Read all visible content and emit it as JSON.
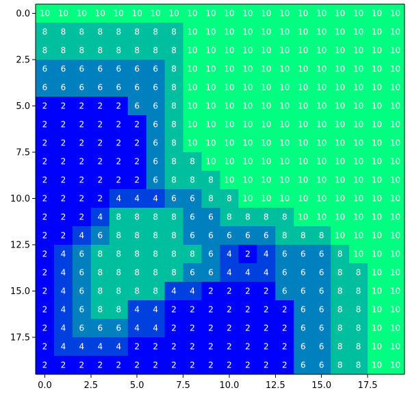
{
  "chart_data": {
    "type": "heatmap",
    "title": "",
    "xlabel": "",
    "ylabel": "",
    "grid": false,
    "legend": "none",
    "x_range": [
      -0.5,
      19.5
    ],
    "y_range": [
      19.5,
      -0.5
    ],
    "x_ticks": [
      "0.0",
      "2.5",
      "5.0",
      "7.5",
      "10.0",
      "12.5",
      "15.0",
      "17.5"
    ],
    "x_tick_values": [
      0,
      2.5,
      5,
      7.5,
      10,
      12.5,
      15,
      17.5
    ],
    "y_ticks": [
      "0.0",
      "2.5",
      "5.0",
      "7.5",
      "10.0",
      "12.5",
      "15.0",
      "17.5"
    ],
    "y_tick_values": [
      0,
      2.5,
      5,
      7.5,
      10,
      12.5,
      15,
      17.5
    ],
    "colormap": "winter",
    "color_min": 2,
    "color_max": 10,
    "colors": {
      "2": "#0000ff",
      "4": "#0040df",
      "6": "#0080bf",
      "8": "#00bf9f",
      "10": "#00ff80"
    },
    "rows": [
      [
        10,
        10,
        10,
        10,
        10,
        10,
        10,
        10,
        10,
        10,
        10,
        10,
        10,
        10,
        10,
        10,
        10,
        10,
        10,
        10
      ],
      [
        8,
        8,
        8,
        8,
        8,
        8,
        8,
        8,
        10,
        10,
        10,
        10,
        10,
        10,
        10,
        10,
        10,
        10,
        10,
        10
      ],
      [
        8,
        8,
        8,
        8,
        8,
        8,
        8,
        8,
        10,
        10,
        10,
        10,
        10,
        10,
        10,
        10,
        10,
        10,
        10,
        10
      ],
      [
        6,
        6,
        6,
        6,
        6,
        6,
        6,
        8,
        10,
        10,
        10,
        10,
        10,
        10,
        10,
        10,
        10,
        10,
        10,
        10
      ],
      [
        6,
        6,
        6,
        6,
        6,
        6,
        6,
        8,
        10,
        10,
        10,
        10,
        10,
        10,
        10,
        10,
        10,
        10,
        10,
        10
      ],
      [
        2,
        2,
        2,
        2,
        2,
        6,
        6,
        8,
        10,
        10,
        10,
        10,
        10,
        10,
        10,
        10,
        10,
        10,
        10,
        10
      ],
      [
        2,
        2,
        2,
        2,
        2,
        2,
        6,
        8,
        10,
        10,
        10,
        10,
        10,
        10,
        10,
        10,
        10,
        10,
        10,
        10
      ],
      [
        2,
        2,
        2,
        2,
        2,
        2,
        6,
        8,
        10,
        10,
        10,
        10,
        10,
        10,
        10,
        10,
        10,
        10,
        10,
        10
      ],
      [
        2,
        2,
        2,
        2,
        2,
        2,
        6,
        8,
        8,
        10,
        10,
        10,
        10,
        10,
        10,
        10,
        10,
        10,
        10,
        10
      ],
      [
        2,
        2,
        2,
        2,
        2,
        2,
        6,
        8,
        8,
        8,
        10,
        10,
        10,
        10,
        10,
        10,
        10,
        10,
        10,
        10
      ],
      [
        2,
        2,
        2,
        2,
        4,
        4,
        4,
        6,
        6,
        8,
        8,
        10,
        10,
        10,
        10,
        10,
        10,
        10,
        10,
        10
      ],
      [
        2,
        2,
        2,
        4,
        8,
        8,
        8,
        8,
        6,
        6,
        8,
        8,
        8,
        8,
        10,
        10,
        10,
        10,
        10,
        10
      ],
      [
        2,
        2,
        4,
        6,
        8,
        8,
        8,
        8,
        6,
        6,
        6,
        6,
        6,
        8,
        8,
        8,
        10,
        10,
        10,
        10
      ],
      [
        2,
        4,
        6,
        8,
        8,
        8,
        8,
        8,
        8,
        6,
        4,
        2,
        4,
        6,
        6,
        6,
        8,
        10,
        10,
        10
      ],
      [
        2,
        4,
        6,
        8,
        8,
        8,
        8,
        8,
        6,
        6,
        4,
        4,
        4,
        6,
        6,
        6,
        8,
        8,
        10,
        10
      ],
      [
        2,
        4,
        6,
        8,
        8,
        8,
        8,
        4,
        4,
        2,
        2,
        2,
        2,
        6,
        6,
        6,
        8,
        8,
        10,
        10
      ],
      [
        2,
        4,
        6,
        8,
        8,
        4,
        4,
        2,
        2,
        2,
        2,
        2,
        2,
        2,
        6,
        6,
        8,
        8,
        10,
        10
      ],
      [
        2,
        4,
        6,
        6,
        6,
        4,
        4,
        2,
        2,
        2,
        2,
        2,
        2,
        2,
        6,
        6,
        8,
        8,
        10,
        10
      ],
      [
        2,
        4,
        4,
        4,
        4,
        2,
        2,
        2,
        2,
        2,
        2,
        2,
        2,
        2,
        6,
        6,
        8,
        8,
        10,
        10
      ],
      [
        2,
        2,
        2,
        2,
        2,
        2,
        2,
        2,
        2,
        2,
        2,
        2,
        2,
        2,
        6,
        6,
        8,
        8,
        10,
        10
      ]
    ]
  }
}
